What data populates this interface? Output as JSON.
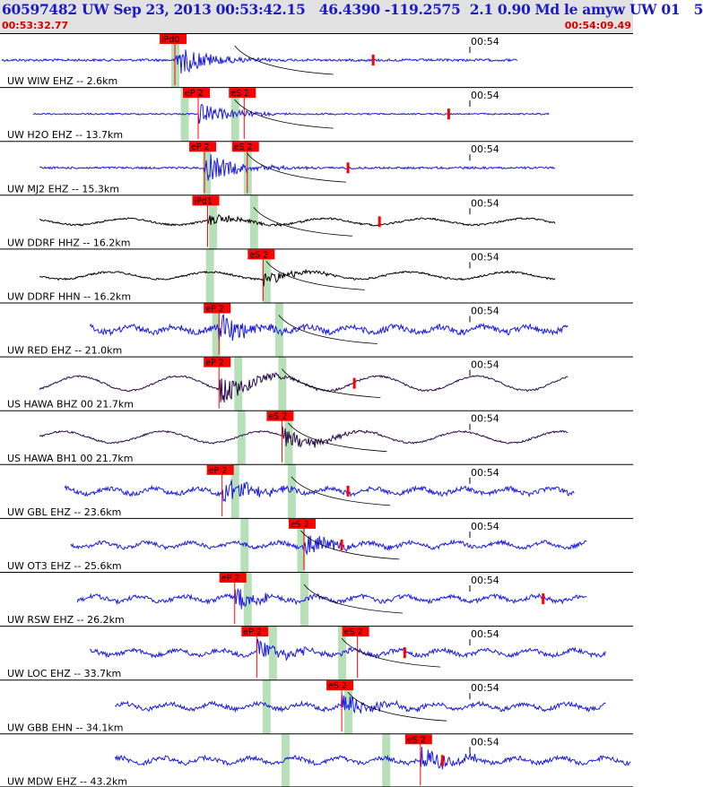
{
  "header": {
    "title": "60597482 UW Sep 23, 2013 00:53:42.15   46.4390 -119.2575  2.1 0.90 Md le amyw UW 01   5",
    "time_start": "00:53:32.77",
    "time_end": "00:54:09.49"
  },
  "colors": {
    "background": "#ffffff",
    "header_bg": "#e2e2e2",
    "title": "#1a1ac8",
    "header_time": "#d80000",
    "trace_short_period": "#1a1ae6",
    "trace_broadband": "#000000",
    "trace_hawa": "#2a0a4a",
    "pick": "#ff0000",
    "pick_window": "#b8e0b8",
    "moveout_curve": "#000000"
  },
  "chart_data": {
    "type": "line",
    "title": "60597482 UW Sep 23, 2013 00:53:42.15   46.4390 -119.2575  2.1 0.90 Md le amyw UW 01   5",
    "x_range": [
      "00:53:32.77",
      "00:54:09.49"
    ],
    "minute_mark": "00:54",
    "channels": [
      {
        "label": "UW WIW EHZ -- 2.6km",
        "distance_km": 2.6,
        "kind": "sp",
        "style": "burst",
        "start": 0.0,
        "end": 0.82,
        "amp": 0.85,
        "coda_pick": 0.59,
        "picks": [
          {
            "label": "iPd0",
            "phase": "P",
            "t": 0.275
          }
        ]
      },
      {
        "label": "UW H2O EHZ -- 13.7km",
        "distance_km": 13.7,
        "kind": "sp",
        "style": "burst",
        "start": 0.05,
        "end": 0.87,
        "amp": 0.55,
        "coda_pick": 0.71,
        "picks": [
          {
            "label": "eP 2",
            "phase": "P",
            "t": 0.312
          },
          {
            "label": "eS 2",
            "phase": "S",
            "t": 0.385
          }
        ]
      },
      {
        "label": "UW MJ2 EHZ -- 15.3km",
        "distance_km": 15.3,
        "kind": "sp",
        "style": "burst",
        "start": 0.06,
        "end": 0.88,
        "amp": 0.75,
        "coda_pick": 0.55,
        "picks": [
          {
            "label": "eP 2",
            "phase": "P",
            "t": 0.322
          },
          {
            "label": "eS 2",
            "phase": "S",
            "t": 0.39
          }
        ]
      },
      {
        "label": "UW DDRF HHZ -- 16.2km",
        "distance_km": 16.2,
        "kind": "bb",
        "style": "longperiod",
        "start": 0.06,
        "end": 0.88,
        "amp": 0.4,
        "coda_pick": 0.6,
        "picks": [
          {
            "label": "iPd1",
            "phase": "P",
            "t": 0.327
          }
        ]
      },
      {
        "label": "UW DDRF HHN -- 16.2km",
        "distance_km": 16.2,
        "kind": "bb",
        "style": "longperiod",
        "start": 0.06,
        "end": 0.88,
        "amp": 0.45,
        "coda_pick": null,
        "picks": [
          {
            "label": "eS 2",
            "phase": "S",
            "t": 0.415
          }
        ]
      },
      {
        "label": "UW RED EHZ -- 21.0km",
        "distance_km": 21.0,
        "kind": "sp",
        "style": "noisy",
        "start": 0.14,
        "end": 0.9,
        "amp": 0.8,
        "coda_pick": null,
        "picks": [
          {
            "label": "eP 2",
            "phase": "P",
            "t": 0.345
          }
        ]
      },
      {
        "label": "US HAWA BHZ 00 21.7km",
        "distance_km": 21.7,
        "kind": "hawa",
        "style": "longperiod",
        "start": 0.06,
        "end": 0.9,
        "amp": 0.9,
        "coda_pick": 0.56,
        "picks": [
          {
            "label": "eP 2",
            "phase": "P",
            "t": 0.345
          }
        ]
      },
      {
        "label": "US HAWA BH1 00 21.7km",
        "distance_km": 21.7,
        "kind": "hawa",
        "style": "longperiod",
        "start": 0.06,
        "end": 0.9,
        "amp": 0.7,
        "coda_pick": null,
        "picks": [
          {
            "label": "eS 2",
            "phase": "S",
            "t": 0.445
          }
        ]
      },
      {
        "label": "UW GBL EHZ -- 23.6km",
        "distance_km": 23.6,
        "kind": "sp",
        "style": "noisy",
        "start": 0.1,
        "end": 0.91,
        "amp": 0.65,
        "coda_pick": 0.55,
        "picks": [
          {
            "label": "eP 2",
            "phase": "P",
            "t": 0.35
          }
        ]
      },
      {
        "label": "UW OT3 EHZ -- 25.6km",
        "distance_km": 25.6,
        "kind": "sp",
        "style": "noisy",
        "start": 0.11,
        "end": 0.93,
        "amp": 0.55,
        "coda_pick": 0.54,
        "picks": [
          {
            "label": "eS 2",
            "phase": "S",
            "t": 0.48
          }
        ]
      },
      {
        "label": "UW RSW EHZ -- 26.2km",
        "distance_km": 26.2,
        "kind": "sp",
        "style": "noisy",
        "start": 0.12,
        "end": 0.93,
        "amp": 0.6,
        "coda_pick": 0.86,
        "picks": [
          {
            "label": "eP 2",
            "phase": "P",
            "t": 0.37
          }
        ]
      },
      {
        "label": "UW LOC EHZ -- 33.7km",
        "distance_km": 33.7,
        "kind": "sp",
        "style": "noisy",
        "start": 0.14,
        "end": 0.96,
        "amp": 0.6,
        "coda_pick": 0.64,
        "picks": [
          {
            "label": "eP 2",
            "phase": "P",
            "t": 0.405
          },
          {
            "label": "eS 2",
            "phase": "S",
            "t": 0.565
          }
        ]
      },
      {
        "label": "UW GBB EHN -- 34.1km",
        "distance_km": 34.1,
        "kind": "sp",
        "style": "noisy",
        "start": 0.18,
        "end": 0.96,
        "amp": 0.6,
        "coda_pick": null,
        "picks": [
          {
            "label": "eS 2",
            "phase": "S",
            "t": 0.54
          }
        ]
      },
      {
        "label": "UW MDW EHZ -- 43.2km",
        "distance_km": 43.2,
        "kind": "sp",
        "style": "noisy",
        "start": 0.18,
        "end": 1.0,
        "amp": 0.6,
        "coda_pick": 0.7,
        "picks": [
          {
            "label": "eS 2",
            "phase": "S",
            "t": 0.665
          }
        ]
      }
    ],
    "pick_windows": [
      {
        "t": [
          0.275,
          0.29,
          0.325,
          0.335,
          0.33,
          0.34,
          0.375,
          0.38,
          0.37,
          0.385,
          0.39,
          0.43,
          0.42,
          0.45
        ]
      },
      {
        "t": [
          null,
          0.37,
          0.39,
          0.4,
          0.42,
          0.44,
          0.445,
          0.455,
          0.46,
          0.475,
          0.48,
          0.54,
          0.55,
          0.61
        ]
      }
    ],
    "moveout_curve": "S-wave moveout",
    "grid": false
  }
}
